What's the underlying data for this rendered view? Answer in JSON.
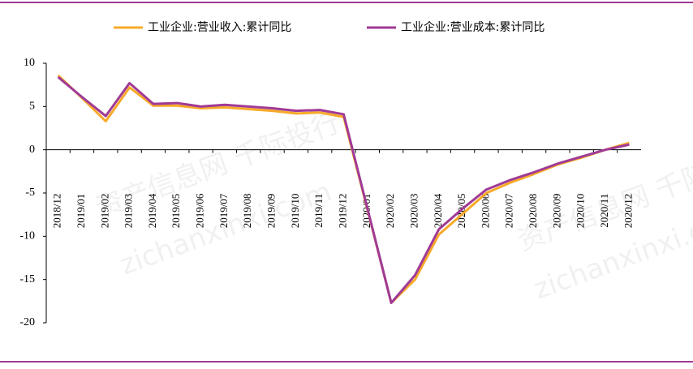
{
  "chart_data": {
    "type": "line",
    "categories": [
      "2018/12",
      "2019/01",
      "2019/02",
      "2019/03",
      "2019/04",
      "2019/05",
      "2019/06",
      "2019/07",
      "2019/08",
      "2019/09",
      "2019/10",
      "2019/11",
      "2019/12",
      "2020/01",
      "2020/02",
      "2020/03",
      "2020/04",
      "2020/05",
      "2020/06",
      "2020/07",
      "2020/08",
      "2020/09",
      "2020/10",
      "2020/11",
      "2020/12"
    ],
    "series": [
      {
        "name": "工业企业:营业收入:累计同比",
        "color": "#f7a929",
        "values": [
          8.6,
          6.0,
          3.3,
          7.2,
          5.1,
          5.1,
          4.8,
          4.9,
          4.7,
          4.5,
          4.2,
          4.3,
          3.8,
          -6.9,
          -17.7,
          -15.0,
          -9.8,
          -7.4,
          -5.0,
          -3.8,
          -2.8,
          -1.7,
          -0.9,
          0.0,
          0.8
        ]
      },
      {
        "name": "工业企业:营业成本:累计同比",
        "color": "#a03a96",
        "values": [
          8.4,
          6.1,
          3.9,
          7.7,
          5.3,
          5.4,
          5.0,
          5.2,
          5.0,
          4.8,
          4.5,
          4.6,
          4.1,
          -6.8,
          -17.7,
          -14.5,
          -9.2,
          -6.8,
          -4.6,
          -3.5,
          -2.6,
          -1.6,
          -0.8,
          0.0,
          0.6
        ]
      }
    ],
    "ylim": [
      -20,
      10
    ],
    "yticks": [
      -20,
      -15,
      -10,
      -5,
      0,
      5,
      10
    ],
    "watermarks": [
      "资产信息网 千际投行",
      "zichanxinxi.com"
    ]
  }
}
